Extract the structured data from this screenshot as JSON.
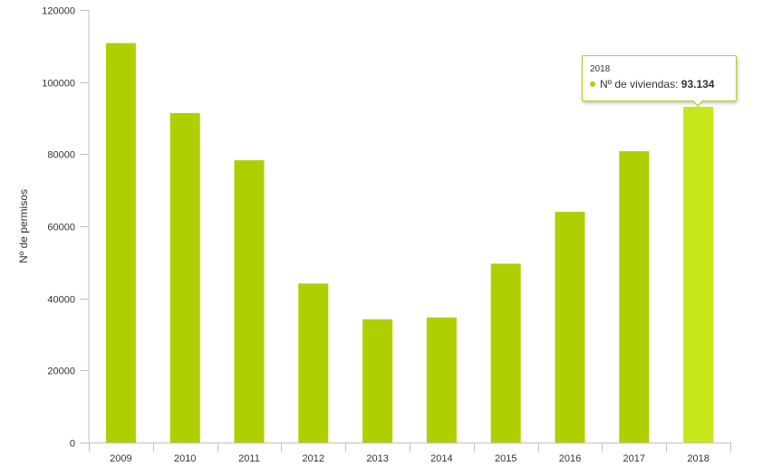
{
  "colors": {
    "bar": "#b0cf00",
    "bar_highlight": "#c5e71a",
    "axis": "#c0c0c0"
  },
  "chart_data": {
    "type": "bar",
    "categories": [
      "2009",
      "2010",
      "2011",
      "2012",
      "2013",
      "2014",
      "2015",
      "2016",
      "2017",
      "2018"
    ],
    "series": [
      {
        "name": "Nº de viviendas",
        "values": [
          110800,
          91400,
          78300,
          44100,
          34200,
          34700,
          49600,
          64000,
          80800,
          93134
        ]
      }
    ],
    "ylabel": "Nº de permisos",
    "xlabel": "",
    "ylim": [
      0,
      120000
    ],
    "yticks": [
      "0",
      "20000",
      "40000",
      "60000",
      "80000",
      "100000",
      "120000"
    ],
    "highlighted_category": "2018",
    "grid": false
  },
  "tooltip": {
    "header": "2018",
    "series_label": "Nº de viviendas: ",
    "value": "93.134"
  }
}
